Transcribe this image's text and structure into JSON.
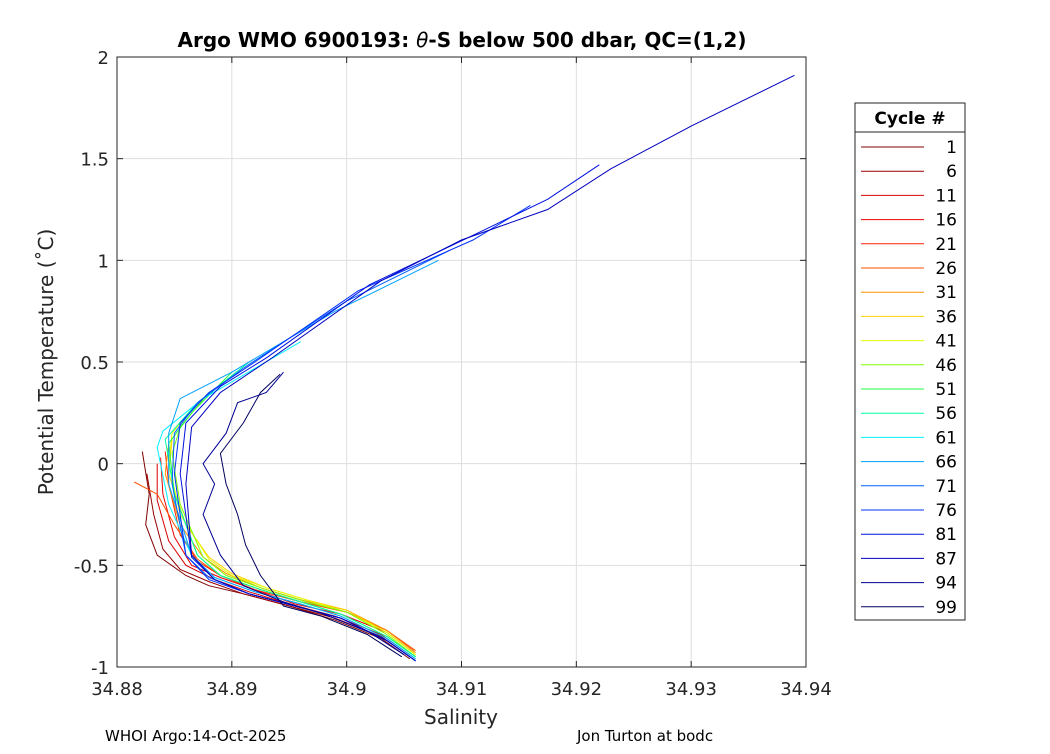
{
  "chart_data": {
    "type": "line",
    "title_prefix": "Argo WMO 6900193: ",
    "title_theta": "θ",
    "title_suffix": "-S below 500 dbar,  QC=(1,2)",
    "xlabel": "Salinity",
    "ylabel": "Potential Temperature (˚C)",
    "xlim": [
      34.88,
      34.94
    ],
    "ylim": [
      -1,
      2
    ],
    "xticks": [
      34.88,
      34.89,
      34.9,
      34.91,
      34.92,
      34.93,
      34.94
    ],
    "xtick_labels": [
      "34.88",
      "34.89",
      "34.9",
      "34.91",
      "34.92",
      "34.93",
      "34.94"
    ],
    "yticks": [
      -1,
      -0.5,
      0,
      0.5,
      1,
      1.5,
      2
    ],
    "ytick_labels": [
      "-1",
      "-0.5",
      "0",
      "0.5",
      "1",
      "1.5",
      "2"
    ],
    "grid": true,
    "legend_title": "Cycle #",
    "legend_placement": "outside-right",
    "series": [
      {
        "name": "1",
        "color": "#800000",
        "points": [
          [
            34.9055,
            -0.96
          ],
          [
            34.903,
            -0.86
          ],
          [
            34.899,
            -0.77
          ],
          [
            34.895,
            -0.7
          ],
          [
            34.891,
            -0.64
          ],
          [
            34.888,
            -0.6
          ],
          [
            34.886,
            -0.55
          ],
          [
            34.8835,
            -0.45
          ],
          [
            34.8825,
            -0.3
          ],
          [
            34.8828,
            -0.15
          ],
          [
            34.8822,
            0.06
          ]
        ]
      },
      {
        "name": "6",
        "color": "#9a0000",
        "points": [
          [
            34.9055,
            -0.95
          ],
          [
            34.903,
            -0.85
          ],
          [
            34.899,
            -0.76
          ],
          [
            34.895,
            -0.7
          ],
          [
            34.891,
            -0.64
          ],
          [
            34.888,
            -0.58
          ],
          [
            34.8855,
            -0.52
          ],
          [
            34.884,
            -0.42
          ],
          [
            34.8832,
            -0.25
          ],
          [
            34.8826,
            -0.05
          ]
        ]
      },
      {
        "name": "11",
        "color": "#d80000",
        "points": [
          [
            34.9055,
            -0.94
          ],
          [
            34.903,
            -0.84
          ],
          [
            34.899,
            -0.75
          ],
          [
            34.895,
            -0.69
          ],
          [
            34.8915,
            -0.63
          ],
          [
            34.8885,
            -0.57
          ],
          [
            34.886,
            -0.5
          ],
          [
            34.8845,
            -0.38
          ],
          [
            34.8835,
            -0.18
          ],
          [
            34.8835,
            0.0
          ]
        ]
      },
      {
        "name": "16",
        "color": "#ec0000",
        "points": [
          [
            34.9058,
            -0.93
          ],
          [
            34.9035,
            -0.83
          ],
          [
            34.8995,
            -0.74
          ],
          [
            34.8955,
            -0.69
          ],
          [
            34.892,
            -0.62
          ],
          [
            34.889,
            -0.56
          ],
          [
            34.8865,
            -0.5
          ],
          [
            34.885,
            -0.36
          ],
          [
            34.884,
            -0.15
          ],
          [
            34.8838,
            0.03
          ]
        ]
      },
      {
        "name": "21",
        "color": "#ff2000",
        "points": [
          [
            34.9058,
            -0.92
          ],
          [
            34.9035,
            -0.82
          ],
          [
            34.9,
            -0.73
          ],
          [
            34.896,
            -0.68
          ],
          [
            34.892,
            -0.62
          ],
          [
            34.889,
            -0.55
          ],
          [
            34.887,
            -0.48
          ],
          [
            34.8855,
            -0.35
          ],
          [
            34.8845,
            -0.1
          ],
          [
            34.8842,
            0.06
          ]
        ]
      },
      {
        "name": "26",
        "color": "#ff5000",
        "points": [
          [
            34.906,
            -0.92
          ],
          [
            34.9035,
            -0.82
          ],
          [
            34.9,
            -0.73
          ],
          [
            34.896,
            -0.68
          ],
          [
            34.892,
            -0.61
          ],
          [
            34.889,
            -0.55
          ],
          [
            34.887,
            -0.47
          ],
          [
            34.885,
            -0.3
          ],
          [
            34.8835,
            -0.15
          ],
          [
            34.8825,
            -0.12
          ],
          [
            34.8815,
            -0.09
          ]
        ]
      },
      {
        "name": "31",
        "color": "#ff9000",
        "points": [
          [
            34.906,
            -0.93
          ],
          [
            34.9035,
            -0.82
          ],
          [
            34.9,
            -0.72
          ],
          [
            34.896,
            -0.67
          ],
          [
            34.8925,
            -0.61
          ],
          [
            34.8895,
            -0.54
          ],
          [
            34.8875,
            -0.46
          ],
          [
            34.8855,
            -0.3
          ],
          [
            34.8842,
            -0.05
          ],
          [
            34.8845,
            0.1
          ]
        ]
      },
      {
        "name": "36",
        "color": "#ffd000",
        "points": [
          [
            34.906,
            -0.94
          ],
          [
            34.9035,
            -0.83
          ],
          [
            34.9,
            -0.72
          ],
          [
            34.8965,
            -0.67
          ],
          [
            34.893,
            -0.61
          ],
          [
            34.89,
            -0.54
          ],
          [
            34.888,
            -0.46
          ],
          [
            34.886,
            -0.3
          ],
          [
            34.8845,
            -0.05
          ],
          [
            34.8848,
            0.12
          ]
        ]
      },
      {
        "name": "41",
        "color": "#e0ff00",
        "points": [
          [
            34.906,
            -0.94
          ],
          [
            34.9035,
            -0.83
          ],
          [
            34.9,
            -0.73
          ],
          [
            34.8965,
            -0.67
          ],
          [
            34.893,
            -0.61
          ],
          [
            34.89,
            -0.55
          ],
          [
            34.888,
            -0.47
          ],
          [
            34.8855,
            -0.25
          ],
          [
            34.8845,
            0.0
          ],
          [
            34.8848,
            0.15
          ],
          [
            34.887,
            0.3
          ]
        ]
      },
      {
        "name": "46",
        "color": "#80ff00",
        "points": [
          [
            34.906,
            -0.95
          ],
          [
            34.9035,
            -0.84
          ],
          [
            34.9,
            -0.73
          ],
          [
            34.8965,
            -0.68
          ],
          [
            34.893,
            -0.62
          ],
          [
            34.8895,
            -0.55
          ],
          [
            34.8875,
            -0.46
          ],
          [
            34.8855,
            -0.2
          ],
          [
            34.8848,
            0.05
          ],
          [
            34.8855,
            0.18
          ],
          [
            34.888,
            0.35
          ]
        ]
      },
      {
        "name": "51",
        "color": "#20ff40",
        "points": [
          [
            34.906,
            -0.95
          ],
          [
            34.9035,
            -0.85
          ],
          [
            34.8995,
            -0.74
          ],
          [
            34.896,
            -0.68
          ],
          [
            34.8925,
            -0.62
          ],
          [
            34.889,
            -0.55
          ],
          [
            34.887,
            -0.45
          ],
          [
            34.885,
            -0.15
          ],
          [
            34.8845,
            0.1
          ],
          [
            34.8865,
            0.25
          ],
          [
            34.89,
            0.45
          ]
        ]
      },
      {
        "name": "56",
        "color": "#00ffa0",
        "points": [
          [
            34.906,
            -0.95
          ],
          [
            34.9035,
            -0.85
          ],
          [
            34.8995,
            -0.74
          ],
          [
            34.896,
            -0.68
          ],
          [
            34.8925,
            -0.62
          ],
          [
            34.889,
            -0.55
          ],
          [
            34.887,
            -0.45
          ],
          [
            34.885,
            -0.15
          ],
          [
            34.8842,
            0.12
          ],
          [
            34.887,
            0.3
          ],
          [
            34.8915,
            0.5
          ]
        ]
      },
      {
        "name": "61",
        "color": "#00f0ff",
        "points": [
          [
            34.906,
            -0.96
          ],
          [
            34.9035,
            -0.86
          ],
          [
            34.8995,
            -0.75
          ],
          [
            34.896,
            -0.69
          ],
          [
            34.892,
            -0.63
          ],
          [
            34.8885,
            -0.56
          ],
          [
            34.8865,
            -0.45
          ],
          [
            34.8845,
            -0.2
          ],
          [
            34.8835,
            0.08
          ],
          [
            34.884,
            0.16
          ],
          [
            34.8875,
            0.32
          ],
          [
            34.896,
            0.6
          ]
        ]
      },
      {
        "name": "66",
        "color": "#00a0ff",
        "points": [
          [
            34.906,
            -0.96
          ],
          [
            34.9035,
            -0.86
          ],
          [
            34.8995,
            -0.75
          ],
          [
            34.896,
            -0.69
          ],
          [
            34.892,
            -0.63
          ],
          [
            34.8885,
            -0.56
          ],
          [
            34.8865,
            -0.45
          ],
          [
            34.8845,
            -0.1
          ],
          [
            34.8845,
            0.15
          ],
          [
            34.8855,
            0.32
          ],
          [
            34.89,
            0.45
          ],
          [
            34.899,
            0.75
          ],
          [
            34.908,
            1.0
          ]
        ]
      },
      {
        "name": "71",
        "color": "#0060ff",
        "points": [
          [
            34.906,
            -0.97
          ],
          [
            34.9035,
            -0.87
          ],
          [
            34.8995,
            -0.76
          ],
          [
            34.8955,
            -0.7
          ],
          [
            34.8915,
            -0.64
          ],
          [
            34.888,
            -0.56
          ],
          [
            34.886,
            -0.45
          ],
          [
            34.8848,
            -0.1
          ],
          [
            34.885,
            0.15
          ],
          [
            34.887,
            0.3
          ],
          [
            34.891,
            0.47
          ],
          [
            34.9,
            0.8
          ],
          [
            34.909,
            1.05
          ]
        ]
      },
      {
        "name": "76",
        "color": "#0030ff",
        "points": [
          [
            34.906,
            -0.97
          ],
          [
            34.9035,
            -0.87
          ],
          [
            34.8995,
            -0.76
          ],
          [
            34.8955,
            -0.7
          ],
          [
            34.8915,
            -0.64
          ],
          [
            34.888,
            -0.57
          ],
          [
            34.886,
            -0.45
          ],
          [
            34.885,
            -0.05
          ],
          [
            34.8855,
            0.2
          ],
          [
            34.888,
            0.35
          ],
          [
            34.892,
            0.5
          ],
          [
            34.901,
            0.85
          ],
          [
            34.911,
            1.1
          ],
          [
            34.916,
            1.27
          ]
        ]
      },
      {
        "name": "81",
        "color": "#0010e0",
        "points": [
          [
            34.906,
            -0.97
          ],
          [
            34.9035,
            -0.87
          ],
          [
            34.8995,
            -0.76
          ],
          [
            34.8955,
            -0.7
          ],
          [
            34.8915,
            -0.64
          ],
          [
            34.8885,
            -0.57
          ],
          [
            34.8865,
            -0.46
          ],
          [
            34.8855,
            -0.05
          ],
          [
            34.886,
            0.2
          ],
          [
            34.889,
            0.38
          ],
          [
            34.893,
            0.52
          ],
          [
            34.902,
            0.88
          ],
          [
            34.912,
            1.15
          ],
          [
            34.9175,
            1.3
          ],
          [
            34.922,
            1.47
          ]
        ]
      },
      {
        "name": "87",
        "color": "#0000c0",
        "points": [
          [
            34.906,
            -0.97
          ],
          [
            34.9035,
            -0.87
          ],
          [
            34.8995,
            -0.76
          ],
          [
            34.8955,
            -0.7
          ],
          [
            34.8915,
            -0.64
          ],
          [
            34.8885,
            -0.57
          ],
          [
            34.8865,
            -0.45
          ],
          [
            34.886,
            -0.1
          ],
          [
            34.8865,
            0.18
          ],
          [
            34.889,
            0.35
          ],
          [
            34.8935,
            0.52
          ],
          [
            34.903,
            0.9
          ],
          [
            34.91,
            1.1
          ],
          [
            34.9175,
            1.25
          ],
          [
            34.923,
            1.45
          ],
          [
            34.93,
            1.66
          ],
          [
            34.939,
            1.91
          ]
        ]
      },
      {
        "name": "94",
        "color": "#000090",
        "points": [
          [
            34.905,
            -0.94
          ],
          [
            34.902,
            -0.83
          ],
          [
            34.898,
            -0.74
          ],
          [
            34.8945,
            -0.68
          ],
          [
            34.891,
            -0.6
          ],
          [
            34.889,
            -0.45
          ],
          [
            34.8875,
            -0.25
          ],
          [
            34.8885,
            -0.1
          ],
          [
            34.8875,
            0.0
          ],
          [
            34.8895,
            0.15
          ],
          [
            34.8905,
            0.3
          ],
          [
            34.893,
            0.35
          ],
          [
            34.8945,
            0.45
          ]
        ]
      },
      {
        "name": "99",
        "color": "#000060",
        "points": [
          [
            34.9048,
            -0.95
          ],
          [
            34.9018,
            -0.84
          ],
          [
            34.8978,
            -0.75
          ],
          [
            34.8945,
            -0.7
          ],
          [
            34.8925,
            -0.55
          ],
          [
            34.8912,
            -0.4
          ],
          [
            34.8905,
            -0.25
          ],
          [
            34.8895,
            -0.1
          ],
          [
            34.889,
            0.05
          ],
          [
            34.891,
            0.2
          ],
          [
            34.8925,
            0.35
          ],
          [
            34.8942,
            0.44
          ]
        ]
      }
    ]
  },
  "footer": {
    "left": "WHOI Argo:14-Oct-2025",
    "right": "Jon Turton at bodc"
  }
}
